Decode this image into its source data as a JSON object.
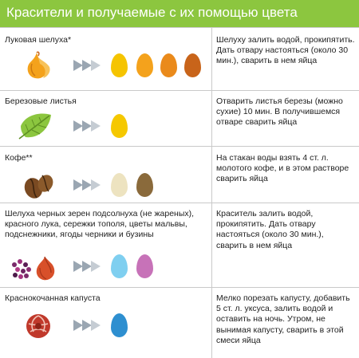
{
  "title": "Красители и получаемые с их помощью цвета",
  "rows": [
    {
      "source": "Луковая шелуха*",
      "icon": "onion-peel-icon",
      "eggs": [
        "#f5c400",
        "#f4a21c",
        "#ea8a1b",
        "#c8641a"
      ],
      "instruction": "Шелуху залить водой, прокипятить. Дать отвару настояться (около 30 мин.), сварить в нем яйца"
    },
    {
      "source": "Березовые листья",
      "icon": "birch-leaf-icon",
      "eggs": [
        "#f5c800"
      ],
      "instruction": "Отварить листья березы (можно сухие) 10 мин. В получившемся отваре сварить яйца"
    },
    {
      "source": "Кофе**",
      "icon": "coffee-beans-icon",
      "eggs": [
        "#ede3c0",
        "#8a6a3b"
      ],
      "instruction": "На стакан воды взять 4 ст. л. молотого кофе, и в этом растворе сварить яйца"
    },
    {
      "source": "Шелуха черных зерен подсолнуха (не жареных), красного лука, сережки тополя, цветы мальвы, подснежники, ягоды черники и бузины",
      "icon": "berries-onion-icon",
      "eggs": [
        "#7fcff0",
        "#c772b8"
      ],
      "instruction": "Краситель залить водой, прокипятить. Дать отвару настояться (около 30 мин.), сварить в нем яйца"
    },
    {
      "source": "Краснокочанная капуста",
      "icon": "red-cabbage-icon",
      "eggs": [
        "#2e8fd0"
      ],
      "instruction": "Мелко порезать капусту, добавить 5 ст. л. уксуса, залить водой и оставить на ночь. Утром, не вынимая капусту, сварить в этой смеси яйца"
    }
  ],
  "colors": {
    "header": "#8cc63f",
    "arrow": "#9aa6b2",
    "divider": "#c9c9c9"
  }
}
